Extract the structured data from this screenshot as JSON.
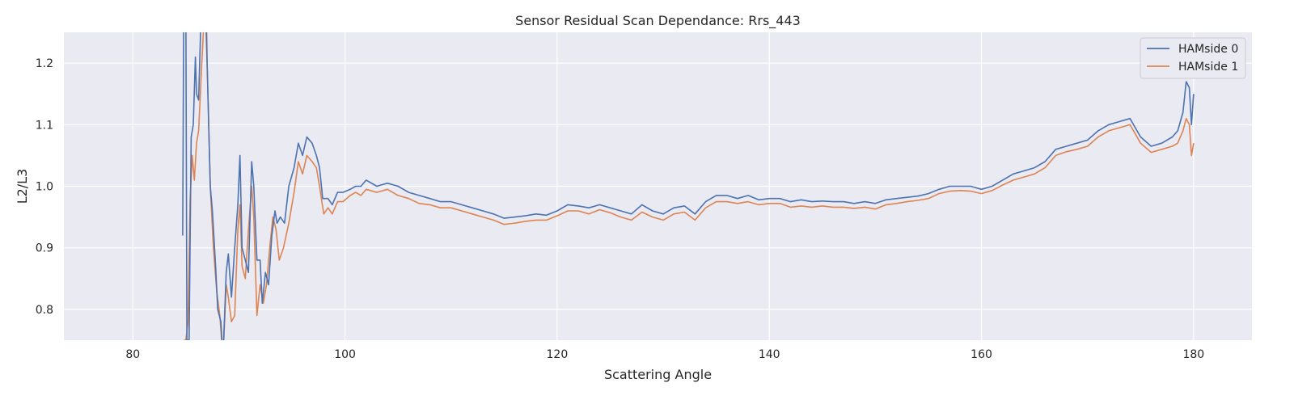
{
  "chart_data": {
    "type": "line",
    "title": "Sensor Residual Scan Dependance: Rrs_443",
    "xlabel": "Scattering Angle",
    "ylabel": "L2/L3",
    "xlim": [
      73.5,
      185.5
    ],
    "ylim": [
      0.75,
      1.25
    ],
    "xticks": [
      80,
      100,
      120,
      140,
      160,
      180
    ],
    "yticks": [
      0.8,
      0.9,
      1.0,
      1.1,
      1.2
    ],
    "xtick_labels": [
      "80",
      "100",
      "120",
      "140",
      "160",
      "180"
    ],
    "ytick_labels": [
      "0.8",
      "0.9",
      "1.0",
      "1.1",
      "1.2"
    ],
    "grid": true,
    "legend_position": "top-right",
    "plot_background": "#eaeaf2",
    "grid_color": "#ffffff",
    "series": [
      {
        "name": "HAMside 0",
        "color": "#4c72b0",
        "points": [
          [
            84.7,
            0.92
          ],
          [
            84.8,
            1.3
          ],
          [
            85.0,
            1.3
          ],
          [
            85.1,
            0.75
          ],
          [
            85.3,
            0.75
          ],
          [
            85.5,
            1.08
          ],
          [
            85.7,
            1.1
          ],
          [
            85.9,
            1.21
          ],
          [
            86.0,
            1.15
          ],
          [
            86.2,
            1.14
          ],
          [
            86.4,
            1.26
          ],
          [
            86.6,
            1.3
          ],
          [
            86.9,
            1.3
          ],
          [
            87.0,
            1.2
          ],
          [
            87.3,
            1.0
          ],
          [
            87.5,
            0.96
          ],
          [
            87.8,
            0.87
          ],
          [
            88.0,
            0.8
          ],
          [
            88.3,
            0.78
          ],
          [
            88.5,
            0.72
          ],
          [
            88.8,
            0.86
          ],
          [
            89.0,
            0.89
          ],
          [
            89.3,
            0.82
          ],
          [
            89.6,
            0.9
          ],
          [
            89.9,
            0.97
          ],
          [
            90.1,
            1.05
          ],
          [
            90.3,
            0.9
          ],
          [
            90.6,
            0.88
          ],
          [
            90.9,
            0.86
          ],
          [
            91.2,
            1.04
          ],
          [
            91.4,
            1.0
          ],
          [
            91.7,
            0.88
          ],
          [
            92.0,
            0.88
          ],
          [
            92.2,
            0.81
          ],
          [
            92.5,
            0.86
          ],
          [
            92.8,
            0.84
          ],
          [
            93.1,
            0.92
          ],
          [
            93.4,
            0.96
          ],
          [
            93.6,
            0.94
          ],
          [
            93.9,
            0.95
          ],
          [
            94.3,
            0.94
          ],
          [
            94.7,
            1.0
          ],
          [
            95.2,
            1.03
          ],
          [
            95.6,
            1.07
          ],
          [
            96.0,
            1.05
          ],
          [
            96.4,
            1.08
          ],
          [
            96.9,
            1.07
          ],
          [
            97.3,
            1.05
          ],
          [
            97.6,
            1.03
          ],
          [
            97.9,
            0.98
          ],
          [
            98.4,
            0.98
          ],
          [
            98.8,
            0.97
          ],
          [
            99.3,
            0.99
          ],
          [
            99.8,
            0.99
          ],
          [
            100.5,
            0.995
          ],
          [
            101.0,
            1.0
          ],
          [
            101.5,
            1.0
          ],
          [
            102.0,
            1.01
          ],
          [
            103.0,
            1.0
          ],
          [
            104.0,
            1.005
          ],
          [
            105.0,
            1.0
          ],
          [
            106.0,
            0.99
          ],
          [
            107.0,
            0.985
          ],
          [
            108.0,
            0.98
          ],
          [
            109.0,
            0.975
          ],
          [
            110.0,
            0.975
          ],
          [
            111.0,
            0.97
          ],
          [
            112.0,
            0.965
          ],
          [
            113.0,
            0.96
          ],
          [
            114.0,
            0.955
          ],
          [
            115.0,
            0.948
          ],
          [
            116.0,
            0.95
          ],
          [
            117.0,
            0.952
          ],
          [
            118.0,
            0.955
          ],
          [
            119.0,
            0.953
          ],
          [
            120.0,
            0.96
          ],
          [
            121.0,
            0.97
          ],
          [
            122.0,
            0.968
          ],
          [
            123.0,
            0.965
          ],
          [
            124.0,
            0.97
          ],
          [
            125.0,
            0.965
          ],
          [
            126.0,
            0.96
          ],
          [
            127.0,
            0.955
          ],
          [
            128.0,
            0.97
          ],
          [
            129.0,
            0.96
          ],
          [
            130.0,
            0.955
          ],
          [
            131.0,
            0.965
          ],
          [
            132.0,
            0.968
          ],
          [
            133.0,
            0.955
          ],
          [
            134.0,
            0.975
          ],
          [
            135.0,
            0.985
          ],
          [
            136.0,
            0.985
          ],
          [
            137.0,
            0.98
          ],
          [
            138.0,
            0.985
          ],
          [
            139.0,
            0.978
          ],
          [
            140.0,
            0.98
          ],
          [
            141.0,
            0.98
          ],
          [
            142.0,
            0.975
          ],
          [
            143.0,
            0.978
          ],
          [
            144.0,
            0.975
          ],
          [
            145.0,
            0.976
          ],
          [
            146.0,
            0.975
          ],
          [
            147.0,
            0.975
          ],
          [
            148.0,
            0.972
          ],
          [
            149.0,
            0.975
          ],
          [
            150.0,
            0.972
          ],
          [
            151.0,
            0.978
          ],
          [
            152.0,
            0.98
          ],
          [
            153.0,
            0.982
          ],
          [
            154.0,
            0.984
          ],
          [
            155.0,
            0.988
          ],
          [
            156.0,
            0.995
          ],
          [
            157.0,
            1.0
          ],
          [
            158.0,
            1.0
          ],
          [
            159.0,
            1.0
          ],
          [
            160.0,
            0.995
          ],
          [
            161.0,
            1.0
          ],
          [
            162.0,
            1.01
          ],
          [
            163.0,
            1.02
          ],
          [
            164.0,
            1.025
          ],
          [
            165.0,
            1.03
          ],
          [
            166.0,
            1.04
          ],
          [
            167.0,
            1.06
          ],
          [
            168.0,
            1.065
          ],
          [
            169.0,
            1.07
          ],
          [
            170.0,
            1.075
          ],
          [
            171.0,
            1.09
          ],
          [
            172.0,
            1.1
          ],
          [
            173.0,
            1.105
          ],
          [
            174.0,
            1.11
          ],
          [
            175.0,
            1.08
          ],
          [
            176.0,
            1.065
          ],
          [
            177.0,
            1.07
          ],
          [
            178.0,
            1.08
          ],
          [
            178.5,
            1.09
          ],
          [
            179.0,
            1.12
          ],
          [
            179.3,
            1.17
          ],
          [
            179.6,
            1.16
          ],
          [
            179.8,
            1.1
          ],
          [
            180.0,
            1.15
          ]
        ]
      },
      {
        "name": "HAMside 1",
        "color": "#dd8452",
        "points": [
          [
            84.8,
            0.75
          ],
          [
            85.0,
            0.75
          ],
          [
            85.2,
            0.78
          ],
          [
            85.4,
            0.98
          ],
          [
            85.6,
            1.05
          ],
          [
            85.8,
            1.01
          ],
          [
            86.0,
            1.07
          ],
          [
            86.2,
            1.09
          ],
          [
            86.5,
            1.2
          ],
          [
            86.8,
            1.3
          ],
          [
            87.0,
            1.2
          ],
          [
            87.3,
            1.0
          ],
          [
            87.6,
            0.9
          ],
          [
            87.9,
            0.83
          ],
          [
            88.2,
            0.79
          ],
          [
            88.5,
            0.72
          ],
          [
            88.8,
            0.84
          ],
          [
            89.0,
            0.82
          ],
          [
            89.3,
            0.78
          ],
          [
            89.6,
            0.79
          ],
          [
            89.9,
            0.93
          ],
          [
            90.1,
            0.97
          ],
          [
            90.3,
            0.87
          ],
          [
            90.6,
            0.85
          ],
          [
            90.9,
            0.93
          ],
          [
            91.2,
            1.0
          ],
          [
            91.4,
            0.95
          ],
          [
            91.7,
            0.79
          ],
          [
            92.0,
            0.84
          ],
          [
            92.3,
            0.81
          ],
          [
            92.6,
            0.84
          ],
          [
            92.9,
            0.9
          ],
          [
            93.2,
            0.95
          ],
          [
            93.5,
            0.93
          ],
          [
            93.8,
            0.88
          ],
          [
            94.2,
            0.9
          ],
          [
            94.7,
            0.94
          ],
          [
            95.2,
            0.99
          ],
          [
            95.6,
            1.04
          ],
          [
            96.0,
            1.02
          ],
          [
            96.4,
            1.05
          ],
          [
            96.9,
            1.04
          ],
          [
            97.3,
            1.03
          ],
          [
            97.6,
            1.0
          ],
          [
            98.0,
            0.955
          ],
          [
            98.4,
            0.965
          ],
          [
            98.8,
            0.955
          ],
          [
            99.3,
            0.975
          ],
          [
            99.8,
            0.975
          ],
          [
            100.5,
            0.985
          ],
          [
            101.0,
            0.99
          ],
          [
            101.5,
            0.985
          ],
          [
            102.0,
            0.995
          ],
          [
            103.0,
            0.99
          ],
          [
            104.0,
            0.995
          ],
          [
            105.0,
            0.985
          ],
          [
            106.0,
            0.98
          ],
          [
            107.0,
            0.972
          ],
          [
            108.0,
            0.97
          ],
          [
            109.0,
            0.965
          ],
          [
            110.0,
            0.965
          ],
          [
            111.0,
            0.96
          ],
          [
            112.0,
            0.955
          ],
          [
            113.0,
            0.95
          ],
          [
            114.0,
            0.945
          ],
          [
            115.0,
            0.938
          ],
          [
            116.0,
            0.94
          ],
          [
            117.0,
            0.943
          ],
          [
            118.0,
            0.945
          ],
          [
            119.0,
            0.945
          ],
          [
            120.0,
            0.952
          ],
          [
            121.0,
            0.96
          ],
          [
            122.0,
            0.96
          ],
          [
            123.0,
            0.955
          ],
          [
            124.0,
            0.962
          ],
          [
            125.0,
            0.957
          ],
          [
            126.0,
            0.95
          ],
          [
            127.0,
            0.945
          ],
          [
            128.0,
            0.958
          ],
          [
            129.0,
            0.95
          ],
          [
            130.0,
            0.945
          ],
          [
            131.0,
            0.955
          ],
          [
            132.0,
            0.958
          ],
          [
            133.0,
            0.945
          ],
          [
            134.0,
            0.965
          ],
          [
            135.0,
            0.975
          ],
          [
            136.0,
            0.975
          ],
          [
            137.0,
            0.972
          ],
          [
            138.0,
            0.975
          ],
          [
            139.0,
            0.97
          ],
          [
            140.0,
            0.972
          ],
          [
            141.0,
            0.972
          ],
          [
            142.0,
            0.966
          ],
          [
            143.0,
            0.968
          ],
          [
            144.0,
            0.966
          ],
          [
            145.0,
            0.968
          ],
          [
            146.0,
            0.966
          ],
          [
            147.0,
            0.966
          ],
          [
            148.0,
            0.964
          ],
          [
            149.0,
            0.966
          ],
          [
            150.0,
            0.963
          ],
          [
            151.0,
            0.97
          ],
          [
            152.0,
            0.972
          ],
          [
            153.0,
            0.975
          ],
          [
            154.0,
            0.977
          ],
          [
            155.0,
            0.98
          ],
          [
            156.0,
            0.988
          ],
          [
            157.0,
            0.992
          ],
          [
            158.0,
            0.993
          ],
          [
            159.0,
            0.992
          ],
          [
            160.0,
            0.988
          ],
          [
            161.0,
            0.993
          ],
          [
            162.0,
            1.002
          ],
          [
            163.0,
            1.01
          ],
          [
            164.0,
            1.015
          ],
          [
            165.0,
            1.02
          ],
          [
            166.0,
            1.03
          ],
          [
            167.0,
            1.05
          ],
          [
            168.0,
            1.056
          ],
          [
            169.0,
            1.06
          ],
          [
            170.0,
            1.065
          ],
          [
            171.0,
            1.08
          ],
          [
            172.0,
            1.09
          ],
          [
            173.0,
            1.095
          ],
          [
            174.0,
            1.1
          ],
          [
            175.0,
            1.07
          ],
          [
            176.0,
            1.055
          ],
          [
            177.0,
            1.06
          ],
          [
            178.0,
            1.065
          ],
          [
            178.5,
            1.07
          ],
          [
            179.0,
            1.09
          ],
          [
            179.3,
            1.11
          ],
          [
            179.6,
            1.1
          ],
          [
            179.8,
            1.05
          ],
          [
            180.0,
            1.07
          ]
        ]
      }
    ]
  }
}
